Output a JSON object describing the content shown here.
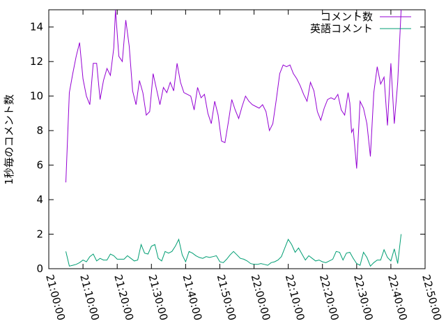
{
  "chart_data": {
    "type": "line",
    "title": "",
    "xlabel": "",
    "ylabel": "1秒毎のコメント数",
    "xlim": [
      "21:00:00",
      "22:50:00"
    ],
    "ylim": [
      0,
      15
    ],
    "x_ticks": [
      "21:00:00",
      "21:10:00",
      "21:20:00",
      "21:30:00",
      "21:40:00",
      "21:50:00",
      "22:00:00",
      "22:10:00",
      "22:20:00",
      "22:30:00",
      "22:40:00",
      "22:50:00"
    ],
    "y_ticks": [
      "0",
      "2",
      "4",
      "6",
      "8",
      "10",
      "12",
      "14"
    ],
    "grid": false,
    "legend_position": "top-right",
    "series": [
      {
        "name": "コメント数",
        "color": "#9400d3",
        "points": [
          [
            "21:05:00",
            5.0
          ],
          [
            "21:06:00",
            10.2
          ],
          [
            "21:07:00",
            11.3
          ],
          [
            "21:08:00",
            12.3
          ],
          [
            "21:09:00",
            13.1
          ],
          [
            "21:10:00",
            11.0
          ],
          [
            "21:11:00",
            10.0
          ],
          [
            "21:12:00",
            9.5
          ],
          [
            "21:13:00",
            11.9
          ],
          [
            "21:14:00",
            11.9
          ],
          [
            "21:15:00",
            9.8
          ],
          [
            "21:16:00",
            10.9
          ],
          [
            "21:17:00",
            11.6
          ],
          [
            "21:18:00",
            11.2
          ],
          [
            "21:19:00",
            12.8
          ],
          [
            "21:19:30",
            15.0
          ],
          [
            "21:20:30",
            12.3
          ],
          [
            "21:21:30",
            12.0
          ],
          [
            "21:22:30",
            14.4
          ],
          [
            "21:23:30",
            12.9
          ],
          [
            "21:24:30",
            10.3
          ],
          [
            "21:25:30",
            9.5
          ],
          [
            "21:26:30",
            10.9
          ],
          [
            "21:27:30",
            10.2
          ],
          [
            "21:28:30",
            8.9
          ],
          [
            "21:29:30",
            9.1
          ],
          [
            "21:30:30",
            11.3
          ],
          [
            "21:31:30",
            10.4
          ],
          [
            "21:32:30",
            9.5
          ],
          [
            "21:33:30",
            10.5
          ],
          [
            "21:34:30",
            10.2
          ],
          [
            "21:35:30",
            10.8
          ],
          [
            "21:36:30",
            10.3
          ],
          [
            "21:37:30",
            11.9
          ],
          [
            "21:38:30",
            10.8
          ],
          [
            "21:39:30",
            10.2
          ],
          [
            "21:40:30",
            10.1
          ],
          [
            "21:41:30",
            10.0
          ],
          [
            "21:42:30",
            9.2
          ],
          [
            "21:43:30",
            10.5
          ],
          [
            "21:44:30",
            9.9
          ],
          [
            "21:45:30",
            10.1
          ],
          [
            "21:46:30",
            9.0
          ],
          [
            "21:47:30",
            8.4
          ],
          [
            "21:48:30",
            9.7
          ],
          [
            "21:49:30",
            8.9
          ],
          [
            "21:50:30",
            7.4
          ],
          [
            "21:51:30",
            7.3
          ],
          [
            "21:52:30",
            8.5
          ],
          [
            "21:53:30",
            9.8
          ],
          [
            "21:54:30",
            9.2
          ],
          [
            "21:55:30",
            8.7
          ],
          [
            "21:56:30",
            9.4
          ],
          [
            "21:57:30",
            10.0
          ],
          [
            "21:58:30",
            9.7
          ],
          [
            "21:59:30",
            9.5
          ],
          [
            "22:00:30",
            9.4
          ],
          [
            "22:01:30",
            9.3
          ],
          [
            "22:02:30",
            9.5
          ],
          [
            "22:03:30",
            9.1
          ],
          [
            "22:04:30",
            8.0
          ],
          [
            "22:05:30",
            8.4
          ],
          [
            "22:06:30",
            9.8
          ],
          [
            "22:07:30",
            11.3
          ],
          [
            "22:08:30",
            11.8
          ],
          [
            "22:09:30",
            11.7
          ],
          [
            "22:10:30",
            11.8
          ],
          [
            "22:11:30",
            11.3
          ],
          [
            "22:12:30",
            11.0
          ],
          [
            "22:13:30",
            10.6
          ],
          [
            "22:14:30",
            10.1
          ],
          [
            "22:15:30",
            9.7
          ],
          [
            "22:16:30",
            10.8
          ],
          [
            "22:17:30",
            10.3
          ],
          [
            "22:18:30",
            9.1
          ],
          [
            "22:19:30",
            8.6
          ],
          [
            "22:20:30",
            9.3
          ],
          [
            "22:21:30",
            9.8
          ],
          [
            "22:22:30",
            9.9
          ],
          [
            "22:23:30",
            9.8
          ],
          [
            "22:24:30",
            10.1
          ],
          [
            "22:25:30",
            9.2
          ],
          [
            "22:26:30",
            8.9
          ],
          [
            "22:27:30",
            10.2
          ],
          [
            "22:28:00",
            9.6
          ],
          [
            "22:28:30",
            7.9
          ],
          [
            "22:29:00",
            8.1
          ],
          [
            "22:30:00",
            5.8
          ],
          [
            "22:31:00",
            9.7
          ],
          [
            "22:32:00",
            9.3
          ],
          [
            "22:33:00",
            8.4
          ],
          [
            "22:34:00",
            6.5
          ],
          [
            "22:35:00",
            10.2
          ],
          [
            "22:36:00",
            11.7
          ],
          [
            "22:37:00",
            10.7
          ],
          [
            "22:38:00",
            11.1
          ],
          [
            "22:39:00",
            8.3
          ],
          [
            "22:40:00",
            11.9
          ],
          [
            "22:41:00",
            8.4
          ],
          [
            "22:42:00",
            10.8
          ],
          [
            "22:43:00",
            15.0
          ]
        ]
      },
      {
        "name": "英語コメント",
        "color": "#009e73",
        "points": [
          [
            "21:05:00",
            1.0
          ],
          [
            "21:06:00",
            0.15
          ],
          [
            "21:07:00",
            0.2
          ],
          [
            "21:08:00",
            0.25
          ],
          [
            "21:09:00",
            0.35
          ],
          [
            "21:10:00",
            0.5
          ],
          [
            "21:11:00",
            0.4
          ],
          [
            "21:12:00",
            0.7
          ],
          [
            "21:13:00",
            0.85
          ],
          [
            "21:14:00",
            0.45
          ],
          [
            "21:15:00",
            0.6
          ],
          [
            "21:16:00",
            0.5
          ],
          [
            "21:17:00",
            0.5
          ],
          [
            "21:18:00",
            0.85
          ],
          [
            "21:19:00",
            0.75
          ],
          [
            "21:20:00",
            0.55
          ],
          [
            "21:21:00",
            0.55
          ],
          [
            "21:22:00",
            0.55
          ],
          [
            "21:23:00",
            0.75
          ],
          [
            "21:24:00",
            0.6
          ],
          [
            "21:25:00",
            0.45
          ],
          [
            "21:26:00",
            0.5
          ],
          [
            "21:27:00",
            1.4
          ],
          [
            "21:28:00",
            0.9
          ],
          [
            "21:29:00",
            0.85
          ],
          [
            "21:30:00",
            1.3
          ],
          [
            "21:31:00",
            1.4
          ],
          [
            "21:32:00",
            0.6
          ],
          [
            "21:33:00",
            0.45
          ],
          [
            "21:34:00",
            1.0
          ],
          [
            "21:35:00",
            0.9
          ],
          [
            "21:36:00",
            1.0
          ],
          [
            "21:37:00",
            1.3
          ],
          [
            "21:38:00",
            1.7
          ],
          [
            "21:39:00",
            0.8
          ],
          [
            "21:40:00",
            0.4
          ],
          [
            "21:41:00",
            1.0
          ],
          [
            "21:42:00",
            0.9
          ],
          [
            "21:43:00",
            0.75
          ],
          [
            "21:44:00",
            0.65
          ],
          [
            "21:45:00",
            0.6
          ],
          [
            "21:46:00",
            0.7
          ],
          [
            "21:47:00",
            0.65
          ],
          [
            "21:48:00",
            0.7
          ],
          [
            "21:49:00",
            0.75
          ],
          [
            "21:50:00",
            0.4
          ],
          [
            "21:51:00",
            0.35
          ],
          [
            "21:52:00",
            0.55
          ],
          [
            "21:53:00",
            0.8
          ],
          [
            "21:54:00",
            1.0
          ],
          [
            "21:55:00",
            0.8
          ],
          [
            "21:56:00",
            0.6
          ],
          [
            "21:57:00",
            0.55
          ],
          [
            "21:58:00",
            0.45
          ],
          [
            "21:59:00",
            0.3
          ],
          [
            "22:00:00",
            0.25
          ],
          [
            "22:01:00",
            0.25
          ],
          [
            "22:02:00",
            0.3
          ],
          [
            "22:03:00",
            0.25
          ],
          [
            "22:04:00",
            0.2
          ],
          [
            "22:05:00",
            0.35
          ],
          [
            "22:06:00",
            0.4
          ],
          [
            "22:07:00",
            0.5
          ],
          [
            "22:08:00",
            0.7
          ],
          [
            "22:09:00",
            1.2
          ],
          [
            "22:10:00",
            1.7
          ],
          [
            "22:11:00",
            1.4
          ],
          [
            "22:12:00",
            0.95
          ],
          [
            "22:13:00",
            1.2
          ],
          [
            "22:14:00",
            0.85
          ],
          [
            "22:15:00",
            0.5
          ],
          [
            "22:16:00",
            0.75
          ],
          [
            "22:17:00",
            0.6
          ],
          [
            "22:18:00",
            0.45
          ],
          [
            "22:19:00",
            0.5
          ],
          [
            "22:20:00",
            0.4
          ],
          [
            "22:21:00",
            0.35
          ],
          [
            "22:22:00",
            0.45
          ],
          [
            "22:23:00",
            0.55
          ],
          [
            "22:24:00",
            1.0
          ],
          [
            "22:25:00",
            0.95
          ],
          [
            "22:26:00",
            0.5
          ],
          [
            "22:27:00",
            0.9
          ],
          [
            "22:28:00",
            0.95
          ],
          [
            "22:29:00",
            0.6
          ],
          [
            "22:30:00",
            0.3
          ],
          [
            "22:31:00",
            0.2
          ],
          [
            "22:32:00",
            0.95
          ],
          [
            "22:33:00",
            0.65
          ],
          [
            "22:34:00",
            0.15
          ],
          [
            "22:35:00",
            0.35
          ],
          [
            "22:36:00",
            0.5
          ],
          [
            "22:37:00",
            0.5
          ],
          [
            "22:38:00",
            1.1
          ],
          [
            "22:39:00",
            0.65
          ],
          [
            "22:40:00",
            0.45
          ],
          [
            "22:41:00",
            1.15
          ],
          [
            "22:42:00",
            0.3
          ],
          [
            "22:43:00",
            2.0
          ]
        ]
      }
    ]
  }
}
